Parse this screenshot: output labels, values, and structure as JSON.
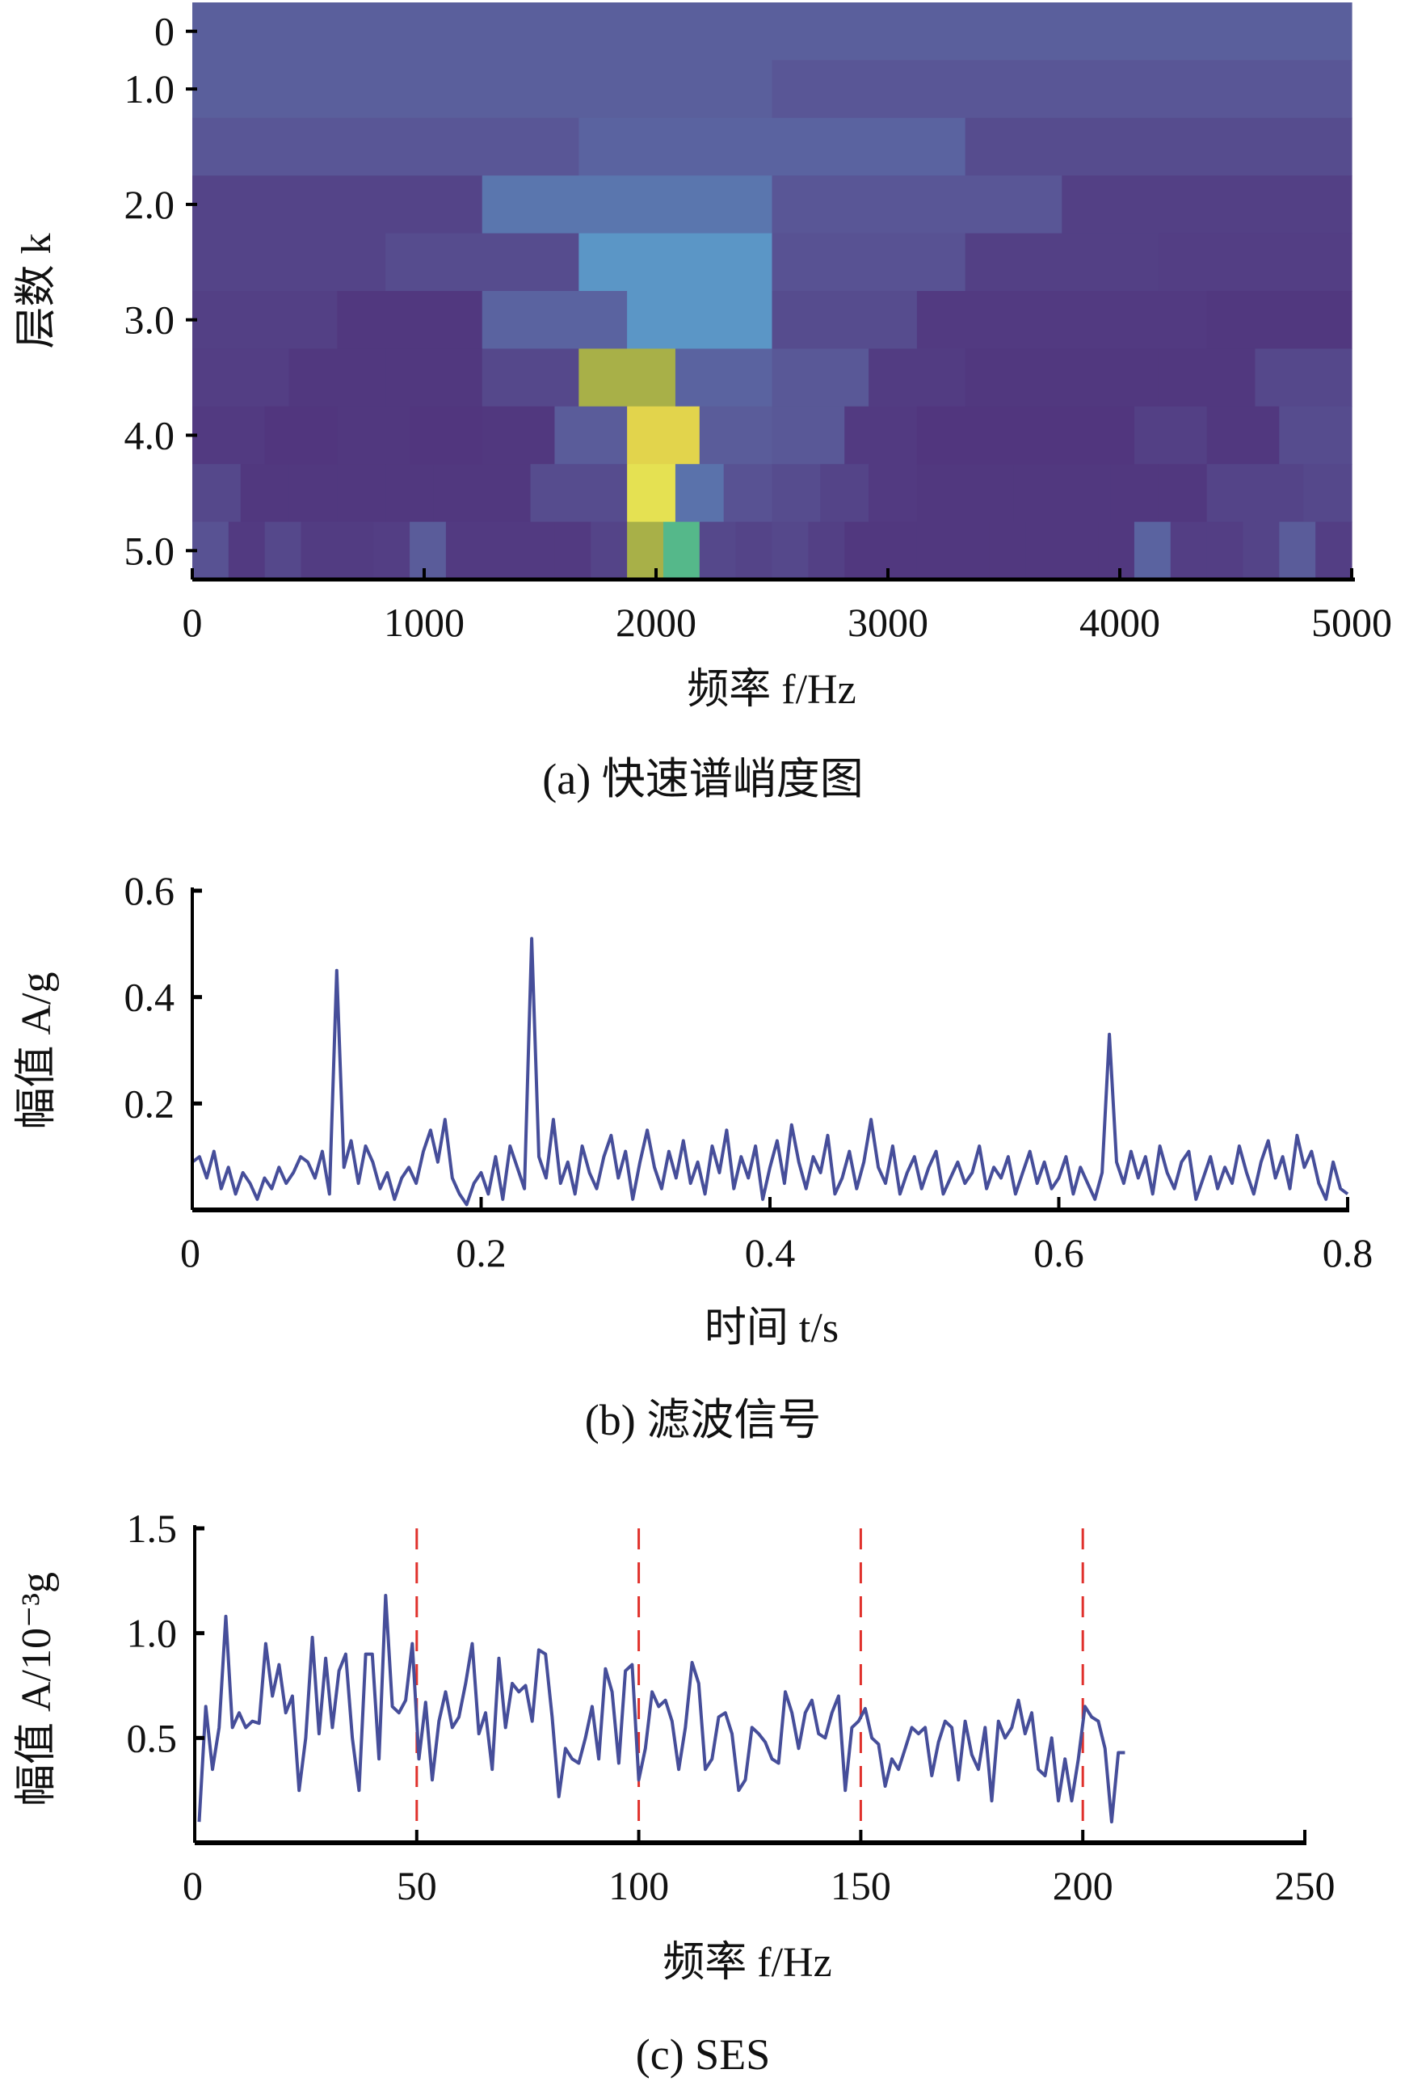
{
  "colors": {
    "line": "#464e9a",
    "marker": "#e0312c",
    "axis": "#000000"
  },
  "chart_data": [
    {
      "type": "heatmap",
      "title": "(a) 快速谱峭度图",
      "xlabel": "频率 f/Hz",
      "ylabel": "层数 k",
      "xlim": [
        0,
        5000
      ],
      "xticks": [
        "0",
        "1000",
        "2000",
        "3000",
        "4000",
        "5000"
      ],
      "yticks": [
        "0",
        "1.0",
        "2.0",
        "3.0",
        "4.0",
        "5.0"
      ],
      "levels": [
        0,
        1,
        1.6,
        2,
        2.6,
        3,
        3.6,
        4,
        4.6,
        5
      ],
      "z": [
        [
          0.22
        ],
        [
          0.22,
          0.17
        ],
        [
          0.17,
          0.25,
          0.12
        ],
        [
          0.08,
          0.38,
          0.17,
          0.06
        ],
        [
          0.08,
          0.12,
          0.5,
          0.15,
          0.06,
          0.05
        ],
        [
          0.06,
          0.02,
          0.25,
          0.5,
          0.12,
          0.03,
          0.03,
          0.02
        ],
        [
          0.05,
          0.02,
          0.02,
          0.1,
          0.8,
          0.25,
          0.18,
          0.04,
          0.02,
          0.02,
          0.02,
          0.1
        ],
        [
          0.03,
          0.01,
          0.02,
          0.01,
          0.02,
          0.2,
          0.9,
          0.2,
          0.18,
          0.03,
          0.01,
          0.01,
          0.01,
          0.06,
          0.02,
          0.12
        ],
        [
          0.1,
          0.02,
          0.02,
          0.02,
          0.02,
          0.02,
          0.02,
          0.12,
          0.12,
          0.97,
          0.35,
          0.15,
          0.12,
          0.08,
          0.03,
          0.02,
          0.02,
          0.02,
          0.02,
          0.02,
          0.02,
          0.08,
          0.08,
          0.1
        ],
        [
          0.15,
          0.03,
          0.1,
          0.04,
          0.04,
          0.05,
          0.2,
          0.03,
          0.03,
          0.03,
          0.03,
          0.08,
          0.8,
          0.7,
          0.1,
          0.08,
          0.1,
          0.06,
          0.02,
          0.02,
          0.02,
          0.02,
          0.02,
          0.02,
          0.02,
          0.02,
          0.25,
          0.05,
          0.05,
          0.08,
          0.2,
          0.05
        ]
      ]
    },
    {
      "type": "line",
      "title": "(b) 滤波信号",
      "xlabel": "时间 t/s",
      "ylabel": "幅值 A/g",
      "xlim": [
        0,
        0.8
      ],
      "ylim": [
        0,
        0.6
      ],
      "xticks": [
        "0",
        "0.2",
        "0.4",
        "0.6",
        "0.8"
      ],
      "yticks": [
        "0.2",
        "0.4",
        "0.6"
      ],
      "x_start": 0,
      "x_step": 0.005,
      "y": [
        0.09,
        0.1,
        0.06,
        0.11,
        0.04,
        0.08,
        0.03,
        0.07,
        0.05,
        0.02,
        0.06,
        0.04,
        0.08,
        0.05,
        0.07,
        0.1,
        0.09,
        0.06,
        0.11,
        0.03,
        0.45,
        0.08,
        0.13,
        0.05,
        0.12,
        0.09,
        0.04,
        0.07,
        0.02,
        0.06,
        0.08,
        0.05,
        0.11,
        0.15,
        0.09,
        0.17,
        0.06,
        0.03,
        0.01,
        0.05,
        0.07,
        0.03,
        0.1,
        0.02,
        0.12,
        0.08,
        0.04,
        0.51,
        0.1,
        0.06,
        0.17,
        0.05,
        0.09,
        0.03,
        0.12,
        0.07,
        0.04,
        0.1,
        0.14,
        0.06,
        0.11,
        0.02,
        0.09,
        0.15,
        0.08,
        0.04,
        0.11,
        0.06,
        0.13,
        0.05,
        0.09,
        0.03,
        0.12,
        0.07,
        0.15,
        0.04,
        0.1,
        0.06,
        0.12,
        0.02,
        0.08,
        0.13,
        0.05,
        0.16,
        0.09,
        0.04,
        0.1,
        0.07,
        0.14,
        0.03,
        0.06,
        0.11,
        0.04,
        0.09,
        0.17,
        0.08,
        0.05,
        0.12,
        0.03,
        0.07,
        0.1,
        0.04,
        0.08,
        0.11,
        0.03,
        0.06,
        0.09,
        0.05,
        0.07,
        0.12,
        0.04,
        0.08,
        0.06,
        0.1,
        0.03,
        0.07,
        0.11,
        0.05,
        0.09,
        0.04,
        0.06,
        0.1,
        0.03,
        0.08,
        0.05,
        0.02,
        0.07,
        0.33,
        0.09,
        0.05,
        0.11,
        0.06,
        0.1,
        0.03,
        0.12,
        0.07,
        0.04,
        0.09,
        0.11,
        0.02,
        0.06,
        0.1,
        0.04,
        0.08,
        0.05,
        0.12,
        0.07,
        0.03,
        0.09,
        0.13,
        0.06,
        0.1,
        0.04,
        0.14,
        0.08,
        0.11,
        0.05,
        0.02,
        0.09,
        0.04,
        0.03
      ]
    },
    {
      "type": "line",
      "title": "(c) SES",
      "xlabel": "频率 f/Hz",
      "ylabel": "幅值 A/10⁻³g",
      "xlim": [
        0,
        250
      ],
      "ylim": [
        0,
        1.5
      ],
      "xticks": [
        "0",
        "50",
        "100",
        "150",
        "200",
        "250"
      ],
      "yticks": [
        "0.5",
        "1.0",
        "1.5"
      ],
      "vlines": [
        50,
        100,
        150,
        200
      ],
      "x_start": 1,
      "x_step": 1.5,
      "y": [
        0.1,
        0.65,
        0.35,
        0.55,
        1.08,
        0.55,
        0.62,
        0.55,
        0.58,
        0.57,
        0.95,
        0.7,
        0.85,
        0.62,
        0.7,
        0.25,
        0.5,
        0.98,
        0.52,
        0.88,
        0.55,
        0.82,
        0.9,
        0.5,
        0.25,
        0.9,
        0.9,
        0.4,
        1.18,
        0.65,
        0.62,
        0.68,
        0.95,
        0.4,
        0.67,
        0.3,
        0.58,
        0.72,
        0.55,
        0.6,
        0.76,
        0.95,
        0.52,
        0.62,
        0.35,
        0.88,
        0.55,
        0.76,
        0.72,
        0.75,
        0.58,
        0.92,
        0.9,
        0.6,
        0.22,
        0.45,
        0.4,
        0.38,
        0.5,
        0.65,
        0.4,
        0.83,
        0.72,
        0.38,
        0.82,
        0.85,
        0.3,
        0.45,
        0.72,
        0.65,
        0.68,
        0.58,
        0.35,
        0.55,
        0.86,
        0.76,
        0.35,
        0.4,
        0.6,
        0.62,
        0.52,
        0.25,
        0.3,
        0.55,
        0.52,
        0.48,
        0.4,
        0.38,
        0.72,
        0.62,
        0.45,
        0.62,
        0.68,
        0.52,
        0.5,
        0.62,
        0.7,
        0.25,
        0.55,
        0.58,
        0.64,
        0.5,
        0.47,
        0.27,
        0.4,
        0.35,
        0.45,
        0.55,
        0.52,
        0.55,
        0.32,
        0.48,
        0.58,
        0.55,
        0.3,
        0.58,
        0.42,
        0.35,
        0.55,
        0.2,
        0.58,
        0.5,
        0.55,
        0.68,
        0.52,
        0.62,
        0.35,
        0.32,
        0.5,
        0.2,
        0.4,
        0.2,
        0.4,
        0.65,
        0.6,
        0.58,
        0.45,
        0.1,
        0.43,
        0.43
      ]
    }
  ]
}
